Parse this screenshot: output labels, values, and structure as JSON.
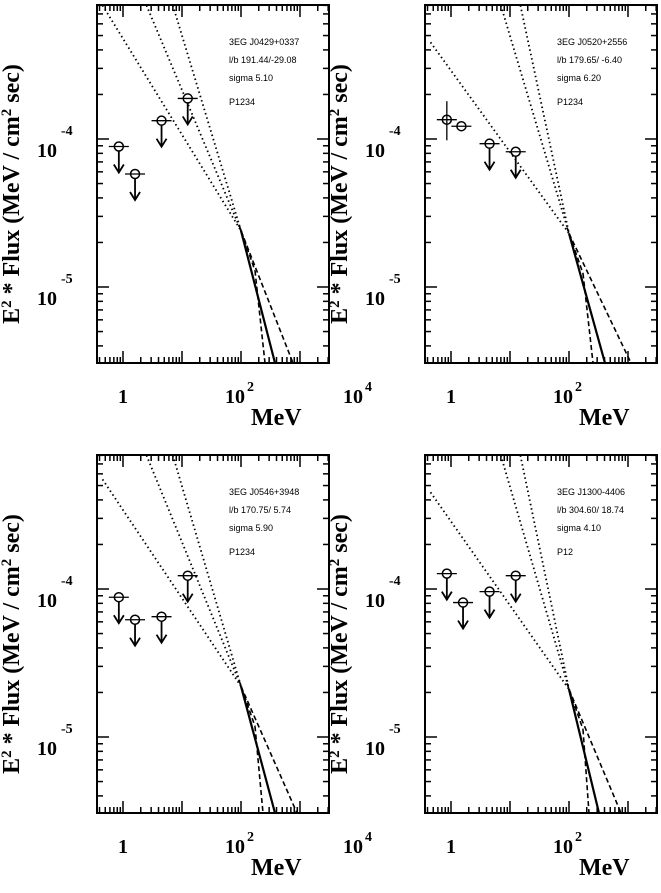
{
  "figure": {
    "xlabel": "MeV",
    "ylabel_parts": [
      "E",
      "2",
      " * Flux (MeV / cm",
      "2",
      " sec)"
    ],
    "x_tick_labels": [
      {
        "base": "1",
        "exp": ""
      },
      {
        "base": "10",
        "exp": "2"
      },
      {
        "base": "10",
        "exp": "4"
      }
    ],
    "y_tick_labels": [
      {
        "base": "10",
        "exp": "-4"
      },
      {
        "base": "10",
        "exp": "-5"
      }
    ]
  },
  "chart_data": [
    {
      "type": "scatter",
      "source": "3EG J0429+0337",
      "lb": "l/b  191.44/-29.08",
      "sigma": "sigma    5.10",
      "periods": "P1234",
      "xscale": "log",
      "yscale": "log",
      "xlim": [
        0.4,
        10000
      ],
      "ylim": [
        3.5e-06,
        0.0008
      ],
      "points": [
        {
          "x": 0.85,
          "y": 8.9e-05,
          "upper_limit": true
        },
        {
          "x": 1.6,
          "y": 5.8e-05,
          "upper_limit": true
        },
        {
          "x": 4.5,
          "y": 0.000133,
          "upper_limit": true
        },
        {
          "x": 12.5,
          "y": 0.000188,
          "upper_limit": true
        }
      ],
      "spectrum": {
        "x": [
          100,
          750
        ],
        "y_best": [
          2.2e-05,
          3.5e-06
        ],
        "y_hi_start": 2.2e-05,
        "y_hi_end": 3.5e-06,
        "y_lo_start": 2.2e-05,
        "y_lo_end": 3.5e-06
      },
      "dotted_lines": [
        {
          "x": [
            0.45,
            100
          ],
          "y": [
            0.0008,
            2.4e-05
          ]
        },
        {
          "x": [
            2.5,
            100
          ],
          "y": [
            0.0008,
            2.4e-05
          ]
        },
        {
          "x": [
            7,
            100
          ],
          "y": [
            0.0008,
            2.4e-05
          ]
        }
      ]
    },
    {
      "type": "scatter",
      "source": "3EG J0520+2556",
      "lb": "l/b  179.65/ -6.40",
      "sigma": "sigma    6.20",
      "periods": "P1234",
      "xscale": "log",
      "yscale": "log",
      "xlim": [
        0.4,
        10000
      ],
      "ylim": [
        3.5e-06,
        0.0008
      ],
      "points": [
        {
          "x": 0.85,
          "y": 0.000135,
          "yerr": [
            9.8e-05,
            0.00018
          ],
          "upper_limit": false
        },
        {
          "x": 1.5,
          "y": 0.000122,
          "upper_limit": false
        },
        {
          "x": 4.5,
          "y": 9.3e-05,
          "upper_limit": true
        },
        {
          "x": 12.5,
          "y": 8.2e-05,
          "upper_limit": true
        }
      ],
      "dotted_lines": [
        {
          "x": [
            0.45,
            100
          ],
          "y": [
            0.00045,
            2.3e-05
          ]
        },
        {
          "x": [
            7,
            100
          ],
          "y": [
            0.0008,
            2.3e-05
          ]
        },
        {
          "x": [
            15,
            100
          ],
          "y": [
            0.0008,
            2.3e-05
          ]
        }
      ]
    },
    {
      "type": "scatter",
      "source": "3EG J0546+3948",
      "lb": "l/b  170.75/  5.74",
      "sigma": "sigma    5.90",
      "periods": "P1234",
      "xscale": "log",
      "yscale": "log",
      "xlim": [
        0.4,
        10000
      ],
      "ylim": [
        3.5e-06,
        0.0008
      ],
      "points": [
        {
          "x": 0.85,
          "y": 8.8e-05,
          "upper_limit": true
        },
        {
          "x": 1.6,
          "y": 6.2e-05,
          "upper_limit": true
        },
        {
          "x": 4.5,
          "y": 6.5e-05,
          "upper_limit": true
        },
        {
          "x": 12.5,
          "y": 0.000123,
          "upper_limit": true
        }
      ],
      "dotted_lines": [
        {
          "x": [
            0.45,
            100
          ],
          "y": [
            0.00055,
            2.2e-05
          ]
        },
        {
          "x": [
            2.5,
            100
          ],
          "y": [
            0.0008,
            2.2e-05
          ]
        },
        {
          "x": [
            7,
            100
          ],
          "y": [
            0.0008,
            2.2e-05
          ]
        }
      ]
    },
    {
      "type": "scatter",
      "source": "3EG J1300-4406",
      "lb": "l/b  304.60/ 18.74",
      "sigma": "sigma    4.10",
      "periods": "P12",
      "xscale": "log",
      "yscale": "log",
      "xlim": [
        0.4,
        10000
      ],
      "ylim": [
        3.5e-06,
        0.0008
      ],
      "points": [
        {
          "x": 0.85,
          "y": 0.000127,
          "upper_limit": true
        },
        {
          "x": 1.6,
          "y": 8.1e-05,
          "upper_limit": true
        },
        {
          "x": 4.5,
          "y": 9.6e-05,
          "upper_limit": true
        },
        {
          "x": 12.5,
          "y": 0.000123,
          "upper_limit": true
        }
      ],
      "dotted_lines": [
        {
          "x": [
            0.45,
            100
          ],
          "y": [
            0.00045,
            2.1e-05
          ]
        },
        {
          "x": [
            7,
            100
          ],
          "y": [
            0.0008,
            2.1e-05
          ]
        },
        {
          "x": [
            15,
            100
          ],
          "y": [
            0.0008,
            2.1e-05
          ]
        }
      ]
    }
  ]
}
